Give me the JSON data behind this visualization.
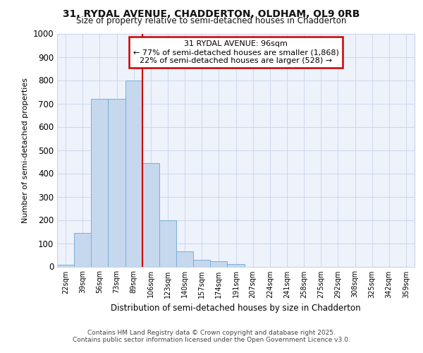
{
  "title_line1": "31, RYDAL AVENUE, CHADDERTON, OLDHAM, OL9 0RB",
  "title_line2": "Size of property relative to semi-detached houses in Chadderton",
  "xlabel": "Distribution of semi-detached houses by size in Chadderton",
  "ylabel": "Number of semi-detached properties",
  "footnote_line1": "Contains HM Land Registry data © Crown copyright and database right 2025.",
  "footnote_line2": "Contains public sector information licensed under the Open Government Licence v3.0.",
  "bar_labels": [
    "22sqm",
    "39sqm",
    "56sqm",
    "73sqm",
    "89sqm",
    "106sqm",
    "123sqm",
    "140sqm",
    "157sqm",
    "174sqm",
    "191sqm",
    "207sqm",
    "224sqm",
    "241sqm",
    "258sqm",
    "275sqm",
    "292sqm",
    "308sqm",
    "325sqm",
    "342sqm",
    "359sqm"
  ],
  "bar_values": [
    8,
    145,
    720,
    720,
    800,
    445,
    200,
    65,
    28,
    22,
    12,
    0,
    0,
    0,
    0,
    0,
    0,
    0,
    0,
    0,
    0
  ],
  "bar_color": "#c5d8ee",
  "bar_edge_color": "#7aaed6",
  "annotation_title": "31 RYDAL AVENUE: 96sqm",
  "annotation_line1": "← 77% of semi-detached houses are smaller (1,868)",
  "annotation_line2": "22% of semi-detached houses are larger (528) →",
  "vline_x": 4.5,
  "vline_color": "#cc0000",
  "ylim": [
    0,
    1000
  ],
  "yticks": [
    0,
    100,
    200,
    300,
    400,
    500,
    600,
    700,
    800,
    900,
    1000
  ],
  "bg_color": "#ffffff",
  "plot_bg_color": "#eef2fb",
  "grid_color": "#c8d4e8"
}
